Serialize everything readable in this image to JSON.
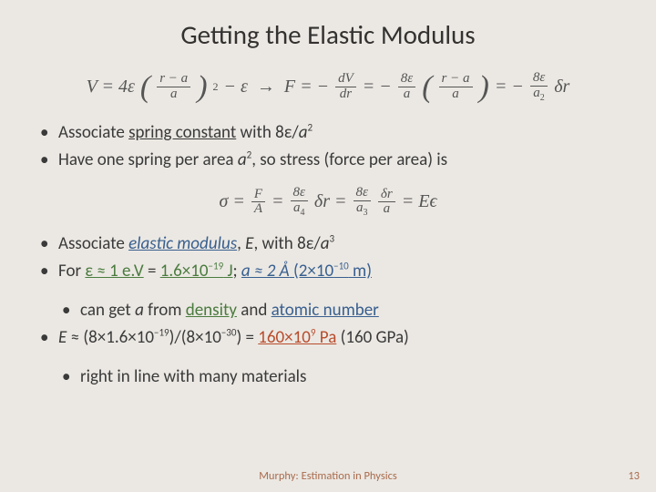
{
  "title": "Getting the Elastic Modulus",
  "bullets_block1": [
    {
      "pre": "Associate ",
      "spring": "spring constant",
      "post": " with 8ε/",
      "ivar": "a",
      "sup": "2"
    },
    {
      "pre": "Have one spring per area ",
      "ivar": "a",
      "sup": "2",
      "post": ", so stress (force per area) is"
    }
  ],
  "bullets_block2": {
    "l1_pre": "Associate ",
    "l1_em": "elastic modulus",
    "l1_mid": ", ",
    "l1_E": "E",
    "l1_post": ", with 8ε/",
    "l1_a": "a",
    "l1_sup": "3",
    "l2_pre": "For ",
    "l2_e": "ε ≈ 1 e.V",
    "l2_eq": " = ",
    "l2_n1": "1.6×10",
    "l2_s1": "−19",
    "l2_J": " J",
    "l2_semi": "; ",
    "l2_a": "a ≈ 2 Å",
    "l2_par": " (2×10",
    "l2_s2": "−10",
    "l2_m": " m)",
    "l2s_pre": "can get ",
    "l2s_a": "a",
    "l2s_mid": " from ",
    "l2s_d": "density",
    "l2s_and": " and ",
    "l2s_an": "atomic number",
    "l3_E": "E",
    "l3_mid": " ≈ (8×1.6×10",
    "l3_s1": "−19",
    "l3_mid2": ")/(8×10",
    "l3_s2": "−30",
    "l3_mid3": ") = ",
    "l3_res": "160×10",
    "l3_s3": "9",
    "l3_res2": " Pa",
    "l3_par": " (160 GPa)",
    "l3s": "right in line with many materials"
  },
  "footer": "Murphy: Estimation in Physics",
  "page": "13"
}
